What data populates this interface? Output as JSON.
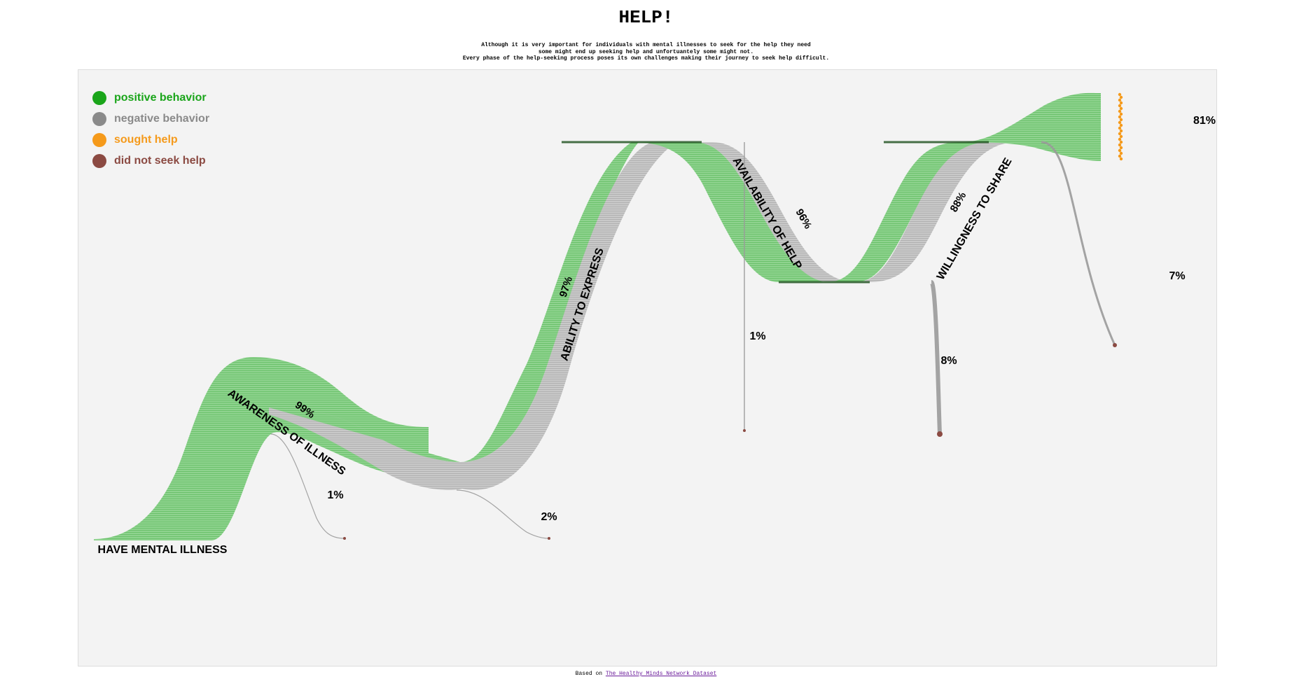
{
  "title": "HELP!",
  "subtitle_lines": [
    "Although it is very important for individuals with mental illnesses to seek for the help they need",
    "some might end up seeking help and unfortuantely some might not.",
    "Every phase of the help-seeking process poses its own challenges making their journey to seek help difficult."
  ],
  "footer": {
    "prefix": "Based on ",
    "link_text": "The Healthy Minds Network Dataset"
  },
  "colors": {
    "positive": "#1aa51a",
    "negative": "#8a8a8a",
    "sought": "#f59a1b",
    "not_sought": "#8b4a42"
  },
  "chart_data": {
    "type": "sankey",
    "legend": [
      {
        "label": "positive behavior",
        "color": "#1aa51a"
      },
      {
        "label": "negative behavior",
        "color": "#8a8a8a"
      },
      {
        "label": "sought help",
        "color": "#f59a1b"
      },
      {
        "label": "did not seek help",
        "color": "#8b4a42"
      }
    ],
    "legend_position": "top-left",
    "start_label": "HAVE MENTAL ILLNESS",
    "stages": [
      {
        "name": "AWARENESS OF ILLNESS",
        "continue_percent": "99%",
        "dropout_percent": "1%"
      },
      {
        "name": "ABILITY TO EXPRESS",
        "continue_percent": "97%",
        "dropout_percent": "2%"
      },
      {
        "name": "AVAILABILITY OF HELP",
        "continue_percent": "96%",
        "dropout_percent": "1%"
      },
      {
        "name": "WILLINGNESS TO SHARE",
        "continue_percent": "88%",
        "dropout_percent": "8%"
      }
    ],
    "final_dropout_percent": "7%",
    "final_sought_percent": "81%"
  }
}
